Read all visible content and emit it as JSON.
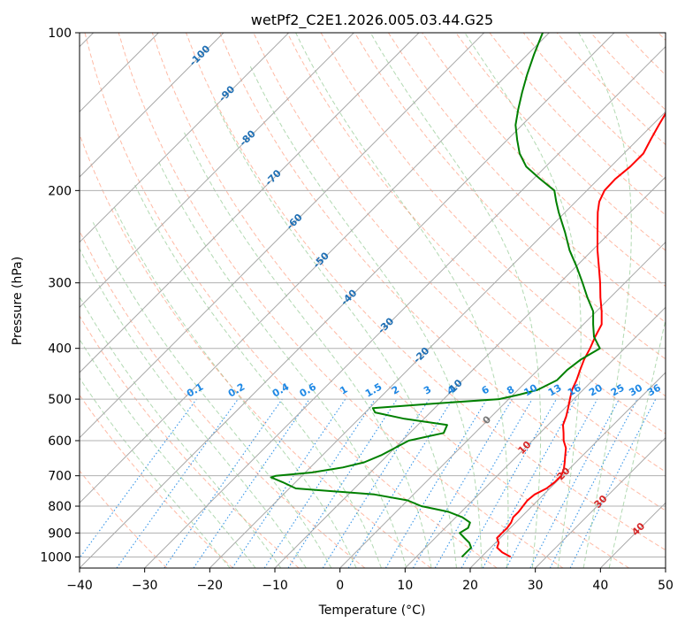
{
  "chart_data": {
    "type": "line",
    "title": "wetPf2_C2E1.2026.005.03.44.G25",
    "xlabel": "Temperature (°C)",
    "ylabel": "Pressure (hPa)",
    "xlim": [
      -40,
      50
    ],
    "ylim": [
      1050,
      100
    ],
    "x_ticks": [
      -40,
      -30,
      -20,
      -10,
      0,
      10,
      20,
      30,
      40,
      50
    ],
    "y_ticks": [
      100,
      200,
      300,
      400,
      500,
      600,
      700,
      800,
      900,
      1000
    ],
    "skew_deg": 45,
    "grid": true,
    "colors": {
      "temperature": "#ff0000",
      "dewpoint": "#008000",
      "dry_adiabat": "#ff8c69",
      "moist_adiabat": "#7fbf7f",
      "mixing_ratio": "#1e88e5",
      "isotherm": "#666666",
      "isotherm_label": "#1f6fb4",
      "warm_isotherm_label": "#d62728",
      "zero_isotherm_label": "#777777",
      "mixing_label": "#1e88e5"
    },
    "isotherm_labels": [
      {
        "t": -100,
        "p": 110,
        "text": "-100"
      },
      {
        "t": -90,
        "p": 130,
        "text": "-90"
      },
      {
        "t": -80,
        "p": 158,
        "text": "-80"
      },
      {
        "t": -70,
        "p": 188,
        "text": "-70"
      },
      {
        "t": -60,
        "p": 228,
        "text": "-60"
      },
      {
        "t": -50,
        "p": 270,
        "text": "-50"
      },
      {
        "t": -40,
        "p": 318,
        "text": "-40"
      },
      {
        "t": -30,
        "p": 360,
        "text": "-30"
      },
      {
        "t": -20,
        "p": 410,
        "text": "-20"
      },
      {
        "t": -10,
        "p": 472,
        "text": "-10"
      },
      {
        "t": 0,
        "p": 545,
        "text": "0"
      },
      {
        "t": 10,
        "p": 615,
        "text": "10"
      },
      {
        "t": 20,
        "p": 690,
        "text": "20"
      },
      {
        "t": 30,
        "p": 780,
        "text": "30"
      },
      {
        "t": 40,
        "p": 880,
        "text": "40"
      }
    ],
    "mixing_ratio_labels": [
      "0.1",
      "0.2",
      "0.4",
      "0.6",
      "1",
      "1.5",
      "2",
      "3",
      "4",
      "6",
      "8",
      "10",
      "13",
      "16",
      "20",
      "25",
      "30",
      "36"
    ],
    "mixing_ratio_label_pressure": 500,
    "series": [
      {
        "name": "Temperature",
        "pressure": [
          1000,
          980,
          960,
          940,
          920,
          900,
          880,
          860,
          840,
          820,
          800,
          780,
          760,
          740,
          720,
          700,
          680,
          660,
          640,
          620,
          600,
          580,
          560,
          540,
          520,
          500,
          480,
          460,
          440,
          420,
          400,
          380,
          360,
          340,
          320,
          300,
          280,
          260,
          240,
          220,
          210,
          200,
          190,
          180,
          170,
          160,
          150,
          140,
          130,
          120,
          110,
          100
        ],
        "values": [
          24.5,
          22.5,
          21,
          20.5,
          19.5,
          19.5,
          19.5,
          19.3,
          18.8,
          18.8,
          18.6,
          18.4,
          18.6,
          19.5,
          19.8,
          19.8,
          19.2,
          18.3,
          17.3,
          16.3,
          14.8,
          13.6,
          12.3,
          11.5,
          10.5,
          9.4,
          8.3,
          7.5,
          6.5,
          5.5,
          4.7,
          3.7,
          2.8,
          0.8,
          -1.5,
          -3.8,
          -6.4,
          -9.2,
          -12.0,
          -15.0,
          -16.4,
          -17.3,
          -17.4,
          -17.0,
          -17.0,
          -18.0,
          -19.0,
          -20.0,
          -21.0,
          -21.7,
          -22.4,
          -23.0
        ]
      },
      {
        "name": "Dewpoint",
        "pressure": [
          1000,
          980,
          960,
          940,
          920,
          900,
          880,
          860,
          840,
          820,
          800,
          780,
          760,
          740,
          720,
          705,
          700,
          690,
          675,
          660,
          640,
          620,
          600,
          580,
          560,
          545,
          530,
          520,
          510,
          500,
          490,
          480,
          460,
          440,
          420,
          400,
          380,
          360,
          340,
          320,
          300,
          280,
          260,
          240,
          220,
          210,
          200,
          190,
          180,
          170,
          160,
          150,
          140,
          130,
          120,
          110,
          100
        ],
        "values": [
          17,
          17,
          17,
          16,
          14.5,
          13,
          13.5,
          13,
          11,
          8,
          3,
          0,
          -6,
          -19,
          -22,
          -24.5,
          -24,
          -19,
          -15,
          -12.5,
          -11,
          -10,
          -9,
          -4.8,
          -5.5,
          -13,
          -18.5,
          -19.5,
          -11,
          -1.5,
          1,
          3,
          4.5,
          4.5,
          5,
          6.2,
          3.5,
          1.5,
          -0.5,
          -3.5,
          -6.5,
          -9.8,
          -13.5,
          -17,
          -21,
          -23,
          -25,
          -29,
          -33,
          -36,
          -38.5,
          -41,
          -43,
          -45,
          -47,
          -49,
          -51
        ]
      }
    ]
  }
}
